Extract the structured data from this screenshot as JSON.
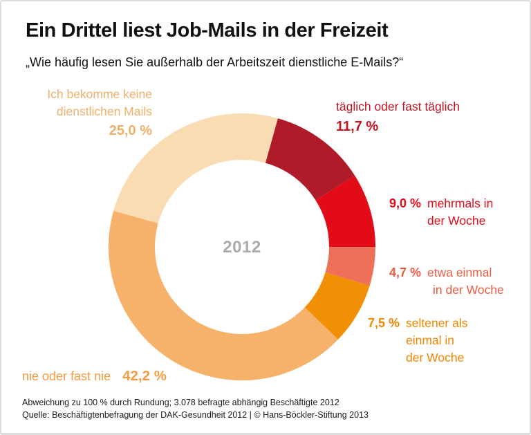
{
  "header": {
    "title": "Ein Drittel liest Job-Mails in der Freizeit",
    "subtitle": "„Wie häufig lesen Sie außerhalb der Arbeitszeit dienstliche E-Mails?“"
  },
  "chart_data": {
    "type": "pie",
    "donut": true,
    "title": "Ein Drittel liest Job-Mails in der Freizeit",
    "subtitle": "„Wie häufig lesen Sie außerhalb der Arbeitszeit dienstliche E-Mails?“",
    "center_label": "2012",
    "center_label_color": "#ababab",
    "rotation_deg": 15.6,
    "inner_radius_ratio": 0.653,
    "note": "values sum to 100.1 due to rounding",
    "segments": [
      {
        "label": "täglich oder fast täglich",
        "value": 11.7,
        "display": "11,7 %",
        "color": "#B01B29",
        "label_color": "#C11322"
      },
      {
        "label": "mehrmals in der Woche",
        "value": 9.0,
        "display": "9,0 %",
        "color": "#E30B17",
        "label_color": "#E30B17"
      },
      {
        "label": "etwa einmal in der Woche",
        "value": 4.7,
        "display": "4,7 %",
        "color": "#EF7058",
        "label_color": "#EB5B43"
      },
      {
        "label": "seltener als einmal in der Woche",
        "value": 7.5,
        "display": "7,5 %",
        "color": "#F18F05",
        "label_color": "#F08600"
      },
      {
        "label": "nie oder fast nie",
        "value": 42.2,
        "display": "42,2 %",
        "color": "#F6B16A",
        "label_color": "#F49C42"
      },
      {
        "label": "Ich bekomme keine dienstlichen Mails",
        "value": 25.0,
        "display": "25,0 %",
        "color": "#FADCB2",
        "label_color": "#EEB069"
      }
    ]
  },
  "labels": {
    "none": {
      "line1": "Ich bekomme keine",
      "line2": "dienstlichen Mails"
    },
    "daily": {
      "line1": "täglich oder fast täglich"
    },
    "several": {
      "line1": "mehrmals in",
      "line2": "der Woche"
    },
    "once": {
      "line1": "etwa einmal",
      "line2": "in der Woche"
    },
    "rare": {
      "line1": "seltener als",
      "line2": "einmal in",
      "line3": "der Woche"
    },
    "never": {
      "text": "nie oder fast nie"
    }
  },
  "footer": {
    "note": "Abweichung zu 100 % durch Rundung; 3.078 befragte abhängig Beschäftigte 2012",
    "source": "Quelle: Beschäftigtenbefragung der DAK-Gesundheit 2012 | © Hans-Böckler-Stiftung 2013"
  }
}
